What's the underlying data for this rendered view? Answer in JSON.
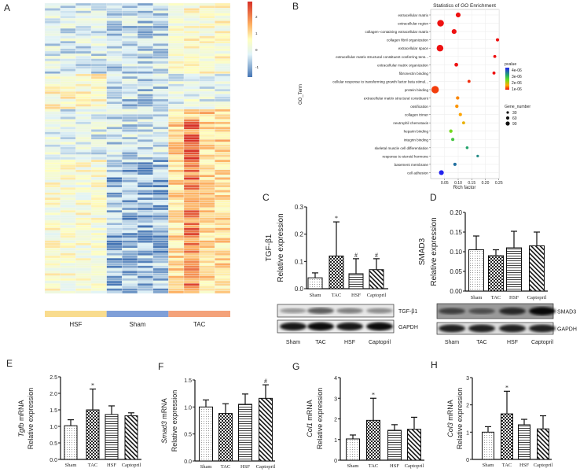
{
  "panels": [
    "A",
    "B",
    "C",
    "D",
    "E",
    "F",
    "G",
    "H"
  ],
  "chart_data": [
    {
      "id": "A",
      "type": "heatmap",
      "column_groups": [
        {
          "name": "HSF",
          "columns": 4,
          "color": "#f9dc8e"
        },
        {
          "name": "Sham",
          "columns": 4,
          "color": "#7f9fd8"
        },
        {
          "name": "TAC",
          "columns": 4,
          "color": "#f4a27a"
        }
      ],
      "colorbar_ticks": [
        "2",
        "1",
        "0",
        "-1"
      ],
      "colorscale": [
        "#4575b4",
        "#e0f3f8",
        "#ffffbf",
        "#fdae61",
        "#d73027"
      ]
    },
    {
      "id": "B",
      "type": "scatter",
      "title": "Statistics of GO Enrichment",
      "xlabel": "Rich factor",
      "ylabel": "GO_Term",
      "xticks": [
        "0.05",
        "0.10",
        "0.15",
        "0.20",
        "0.25"
      ],
      "grid": true,
      "legend_placement": "right",
      "pvalue_legend": {
        "title": "pvalue",
        "ticks": [
          "4e-06",
          "3e-06",
          "2e-06",
          "1e-06"
        ]
      },
      "size_legend": {
        "title": "Gene_number",
        "ticks": [
          "30",
          "60",
          "90"
        ]
      },
      "terms": [
        {
          "term": "extracellular matrix",
          "rich_factor": 0.1,
          "gene_number": 35,
          "pvalue": 0.0
        },
        {
          "term": "extracellular region",
          "rich_factor": 0.035,
          "gene_number": 75,
          "pvalue": 0.0
        },
        {
          "term": "collagen−containing extracellular matrix",
          "rich_factor": 0.085,
          "gene_number": 35,
          "pvalue": 0.0
        },
        {
          "term": "collagen fibril organization",
          "rich_factor": 0.245,
          "gene_number": 12,
          "pvalue": 0.0
        },
        {
          "term": "extracellular space",
          "rich_factor": 0.033,
          "gene_number": 75,
          "pvalue": 0.0
        },
        {
          "term": "extracellular matrix structural constituent conferring tens...",
          "rich_factor": 0.235,
          "gene_number": 10,
          "pvalue": 0.0
        },
        {
          "term": "extracellular matrix organization",
          "rich_factor": 0.093,
          "gene_number": 18,
          "pvalue": 0.0
        },
        {
          "term": "fibronectin binding",
          "rich_factor": 0.232,
          "gene_number": 10,
          "pvalue": 0.0
        },
        {
          "term": "cellular response to transforming growth factor beta stimul...",
          "rich_factor": 0.14,
          "gene_number": 10,
          "pvalue": 2e-07
        },
        {
          "term": "protein binding",
          "rich_factor": 0.015,
          "gene_number": 95,
          "pvalue": 3e-07
        },
        {
          "term": "extracellular matrix structural constituent",
          "rich_factor": 0.098,
          "gene_number": 14,
          "pvalue": 8e-07
        },
        {
          "term": "ossification",
          "rich_factor": 0.095,
          "gene_number": 14,
          "pvalue": 9e-07
        },
        {
          "term": "collagen trimer",
          "rich_factor": 0.108,
          "gene_number": 12,
          "pvalue": 1e-06
        },
        {
          "term": "neutrophil chemotaxis",
          "rich_factor": 0.12,
          "gene_number": 10,
          "pvalue": 1.2e-06
        },
        {
          "term": "heparin binding",
          "rich_factor": 0.073,
          "gene_number": 14,
          "pvalue": 2e-06
        },
        {
          "term": "integrin binding",
          "rich_factor": 0.08,
          "gene_number": 12,
          "pvalue": 2.6e-06
        },
        {
          "term": "skeletal muscle cell differentiation",
          "rich_factor": 0.133,
          "gene_number": 8,
          "pvalue": 3.2e-06
        },
        {
          "term": "response to steroid hormone",
          "rich_factor": 0.172,
          "gene_number": 6,
          "pvalue": 3.4e-06
        },
        {
          "term": "basement membrane",
          "rich_factor": 0.088,
          "gene_number": 12,
          "pvalue": 3.6e-06
        },
        {
          "term": "cell adhesion",
          "rich_factor": 0.038,
          "gene_number": 35,
          "pvalue": 4.2e-06
        }
      ]
    },
    {
      "id": "C",
      "type": "bar",
      "ylabel": [
        "TGF-β1",
        "Relative expression"
      ],
      "categories": [
        "Sham",
        "TAC",
        "HSF",
        "Captopril"
      ],
      "values": [
        0.04,
        0.12,
        0.055,
        0.07
      ],
      "error_upper": [
        0.058,
        0.245,
        0.11,
        0.11
      ],
      "annotations": [
        "",
        "*",
        "#",
        "#"
      ],
      "yticks": [
        "0.0",
        "0.1",
        "0.2",
        "0.3"
      ],
      "ylim": [
        0,
        0.3
      ],
      "blot": {
        "bands": [
          "TGF-β1",
          "GAPDH"
        ],
        "lanes": [
          "Sham",
          "TAC",
          "HSF",
          "Captopril"
        ]
      }
    },
    {
      "id": "D",
      "type": "bar",
      "ylabel": [
        "SMAD3",
        "Relative expression"
      ],
      "categories": [
        "Sham",
        "TAC",
        "HSF",
        "Captopril"
      ],
      "values": [
        0.105,
        0.09,
        0.11,
        0.115
      ],
      "error_upper": [
        0.14,
        0.105,
        0.152,
        0.15
      ],
      "annotations": [
        "",
        "",
        "",
        ""
      ],
      "yticks": [
        "0.00",
        "0.05",
        "0.10",
        "0.15",
        "0.20"
      ],
      "ylim": [
        0,
        0.2
      ],
      "blot": {
        "bands": [
          "SMAD3",
          "GAPDH"
        ],
        "lanes": [
          "Sham",
          "TAC",
          "HSF",
          "Captopril"
        ]
      }
    },
    {
      "id": "E",
      "type": "bar",
      "ylabel": [
        "Tgfb",
        " mRNA",
        "Relative expression"
      ],
      "categories": [
        "Sham",
        "TAC",
        "HSF",
        "Captopril"
      ],
      "values": [
        1.02,
        1.5,
        1.36,
        1.32
      ],
      "error_upper": [
        1.2,
        2.13,
        1.62,
        1.41
      ],
      "annotations": [
        "",
        "*",
        "",
        ""
      ],
      "yticks": [
        "0.0",
        "0.5",
        "1.0",
        "1.5",
        "2.0",
        "2.5"
      ],
      "ylim": [
        0,
        2.5
      ]
    },
    {
      "id": "F",
      "type": "bar",
      "ylabel": [
        "Smad3",
        " mRNA",
        "Relative expression"
      ],
      "categories": [
        "Sham",
        "TAC",
        "HSF",
        "Captopril"
      ],
      "values": [
        1.0,
        0.88,
        1.05,
        1.16
      ],
      "error_upper": [
        1.13,
        1.06,
        1.24,
        1.41
      ],
      "annotations": [
        "",
        "",
        "",
        "#"
      ],
      "yticks": [
        "0.0",
        "0.5",
        "1.0",
        "1.5"
      ],
      "ylim": [
        0,
        1.5
      ]
    },
    {
      "id": "G",
      "type": "bar",
      "ylabel": [
        "Col1",
        " mRNA",
        "Relative expression"
      ],
      "categories": [
        "Sham",
        "TAC",
        "HSF",
        "Captopril"
      ],
      "values": [
        1.03,
        1.93,
        1.45,
        1.5
      ],
      "error_upper": [
        1.22,
        3.0,
        1.72,
        2.08
      ],
      "annotations": [
        "",
        "*",
        "",
        ""
      ],
      "yticks": [
        "0",
        "1",
        "2",
        "3",
        "4"
      ],
      "ylim": [
        0,
        4
      ]
    },
    {
      "id": "H",
      "type": "bar",
      "ylabel": [
        "Col3",
        " mRNA",
        "Relative expression"
      ],
      "categories": [
        "Sham",
        "TAC",
        "HSF",
        "Captopril"
      ],
      "values": [
        1.0,
        1.67,
        1.27,
        1.12
      ],
      "error_upper": [
        1.2,
        2.5,
        1.47,
        1.6
      ],
      "annotations": [
        "",
        "*",
        "",
        ""
      ],
      "yticks": [
        "0",
        "1",
        "2",
        "3"
      ],
      "ylim": [
        0,
        3
      ]
    }
  ]
}
